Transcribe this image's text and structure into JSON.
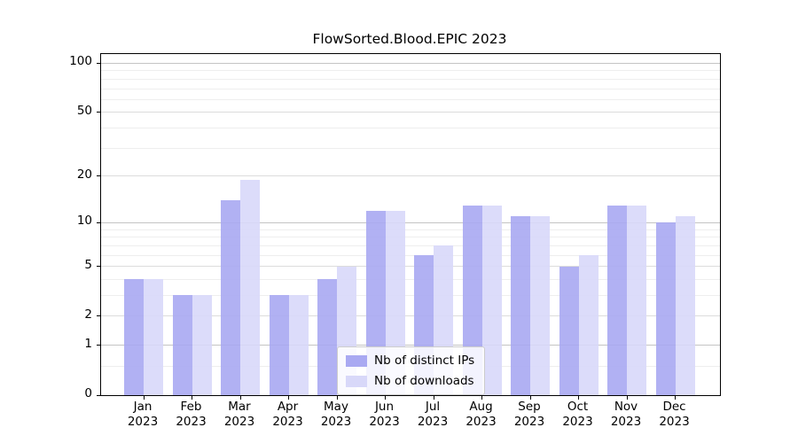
{
  "chart_data": {
    "type": "bar",
    "title": "FlowSorted.Blood.EPIC 2023",
    "categories": [
      "Jan 2023",
      "Feb 2023",
      "Mar 2023",
      "Apr 2023",
      "May 2023",
      "Jun 2023",
      "Jul 2023",
      "Aug 2023",
      "Sep 2023",
      "Oct 2023",
      "Nov 2023",
      "Dec 2023"
    ],
    "x_months": [
      "Jan",
      "Feb",
      "Mar",
      "Apr",
      "May",
      "Jun",
      "Jul",
      "Aug",
      "Sep",
      "Oct",
      "Nov",
      "Dec"
    ],
    "x_year_label": "2023",
    "series": [
      {
        "name": "Nb of distinct IPs",
        "color": "#a9a9f2",
        "values": [
          4,
          3,
          14,
          3,
          4,
          12,
          6,
          13,
          11,
          5,
          13,
          10
        ]
      },
      {
        "name": "Nb of downloads",
        "color": "#d8d8f9",
        "values": [
          4,
          3,
          19,
          3,
          5,
          12,
          7,
          13,
          11,
          6,
          13,
          11
        ]
      }
    ],
    "xlabel": "",
    "ylabel": "",
    "yscale": "log10(1+v)",
    "y_ticks": [
      0,
      1,
      2,
      5,
      10,
      20,
      50,
      100
    ],
    "y_minor_gridlines": [
      0.5,
      3,
      4,
      6,
      7,
      8,
      9,
      30,
      40,
      60,
      70,
      80,
      90
    ],
    "ylim": [
      0,
      114
    ],
    "grid": true,
    "legend_position": "lower center, inside plot"
  },
  "styles": {
    "bar_color_dark": "#a9a9f2",
    "bar_color_light": "#d8d8f9",
    "decade_grid_color": "#c4c4c4",
    "mid_grid_color": "#dcdcdc",
    "minor_grid_color": "#eeeeee",
    "axis_color": "#000000",
    "text_color": "#000000",
    "legend_border_color": "#cccccc",
    "legend_bg": "rgba(255,255,255,0.85)"
  }
}
